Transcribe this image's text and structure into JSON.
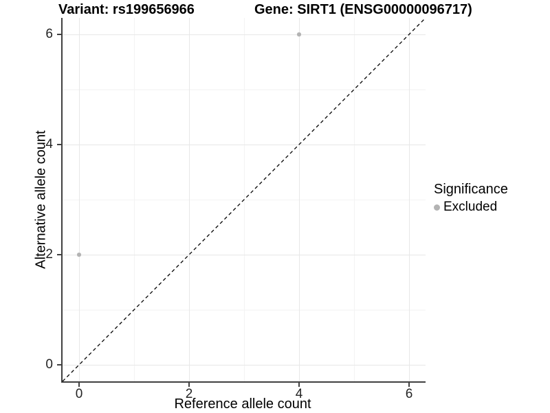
{
  "header": {
    "title_left": "Variant: rs199656966",
    "title_right": "Gene: SIRT1 (ENSG00000096717)"
  },
  "chart_data": {
    "type": "scatter",
    "title": "Variant: rs199656966   Gene: SIRT1 (ENSG00000096717)",
    "xlabel": "Reference allele count",
    "ylabel": "Alternative allele count",
    "xlim": [
      -0.3,
      6.3
    ],
    "ylim": [
      -0.3,
      6.3
    ],
    "x_ticks": [
      0,
      2,
      4,
      6
    ],
    "y_ticks": [
      0,
      2,
      4,
      6
    ],
    "x_minor_gridlines": [
      1,
      3,
      5
    ],
    "y_minor_gridlines": [
      1,
      3,
      5
    ],
    "grid": "major and minor, light gray on white",
    "reference_line": {
      "kind": "identity y=x",
      "style": "dashed",
      "color": "#000000"
    },
    "series": [
      {
        "name": "Excluded",
        "marker": "circle",
        "color": "#b3b3b3",
        "points": [
          {
            "x": 0,
            "y": 2
          },
          {
            "x": 4,
            "y": 6
          }
        ]
      }
    ],
    "legend": {
      "title": "Significance",
      "position": "right",
      "items": [
        {
          "label": "Excluded",
          "color": "#b3b3b3",
          "marker": "circle"
        }
      ]
    },
    "colors": {
      "point": "#b3b3b3",
      "grid_major": "#e7e7e7",
      "grid_minor": "#f3f3f3",
      "axis_line": "#404040",
      "tick_text": "#242424",
      "background": "#ffffff"
    }
  }
}
